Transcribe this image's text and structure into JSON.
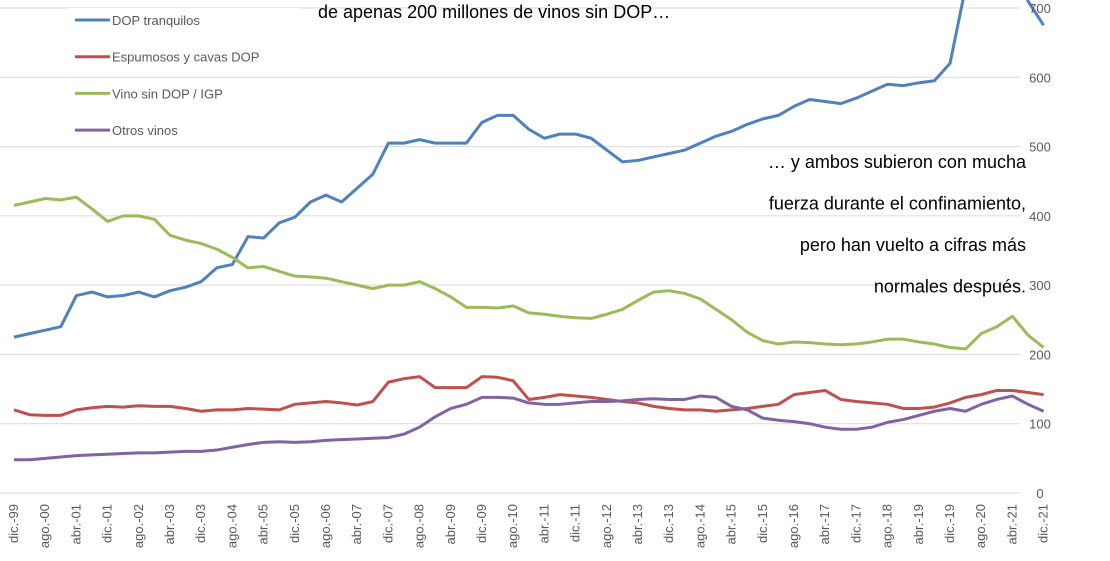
{
  "chart_data": {
    "type": "line",
    "title": "de apenas 200 millones de vinos sin DOP…",
    "annotation": [
      "… y ambos subieron con mucha",
      "fuerza durante el confinamiento,",
      "pero han vuelto a cifras más",
      "normales después."
    ],
    "categories": [
      "dic.-99",
      null,
      "ago.-00",
      null,
      "abr.-01",
      null,
      "dic.-01",
      null,
      "ago.-02",
      null,
      "abr.-03",
      null,
      "dic.-03",
      null,
      "ago.-04",
      null,
      "abr.-05",
      null,
      "dic.-05",
      null,
      "ago.-06",
      null,
      "abr.-07",
      null,
      "dic.-07",
      null,
      "ago.-08",
      null,
      "abr.-09",
      null,
      "dic.-09",
      null,
      "ago.-10",
      null,
      "abr.-11",
      null,
      "dic.-11",
      null,
      "ago.-12",
      null,
      "abr.-13",
      null,
      "dic.-13",
      null,
      "ago.-14",
      null,
      "abr.-15",
      null,
      "dic.-15",
      null,
      "ago.-16",
      null,
      "abr.-17",
      null,
      "dic.-17",
      null,
      "ago.-18",
      null,
      "abr.-19",
      null,
      "dic.-19",
      null,
      "ago.-20",
      null,
      "abr.-21",
      null,
      "dic.-21"
    ],
    "series": [
      {
        "name": "DOP tranquilos",
        "color": "#4f81bd",
        "values": [
          225,
          230,
          235,
          240,
          285,
          290,
          283,
          285,
          290,
          283,
          292,
          297,
          305,
          325,
          330,
          370,
          368,
          390,
          398,
          420,
          430,
          420,
          440,
          460,
          505,
          505,
          510,
          505,
          505,
          505,
          535,
          545,
          545,
          525,
          512,
          518,
          518,
          512,
          495,
          478,
          480,
          485,
          490,
          495,
          505,
          515,
          522,
          532,
          540,
          545,
          558,
          568,
          565,
          562,
          570,
          580,
          590,
          588,
          592,
          595,
          620,
          730,
          760,
          750,
          760,
          710,
          675
        ]
      },
      {
        "name": "Espumosos y cavas DOP",
        "color": "#c0504d",
        "values": [
          120,
          113,
          112,
          112,
          120,
          123,
          125,
          124,
          126,
          125,
          125,
          122,
          118,
          120,
          120,
          122,
          121,
          120,
          128,
          130,
          132,
          130,
          127,
          132,
          160,
          165,
          168,
          152,
          152,
          152,
          168,
          167,
          162,
          135,
          138,
          142,
          140,
          138,
          135,
          132,
          130,
          125,
          122,
          120,
          120,
          118,
          120,
          122,
          125,
          128,
          142,
          145,
          148,
          135,
          132,
          130,
          128,
          122,
          122,
          124,
          130,
          138,
          142,
          148,
          148,
          145,
          142
        ]
      },
      {
        "name": "Vino sin DOP / IGP",
        "color": "#9bbb59",
        "values": [
          415,
          420,
          425,
          423,
          427,
          410,
          392,
          400,
          400,
          395,
          372,
          365,
          360,
          352,
          340,
          325,
          327,
          320,
          313,
          312,
          310,
          305,
          300,
          295,
          300,
          300,
          305,
          295,
          283,
          268,
          268,
          267,
          270,
          260,
          258,
          255,
          253,
          252,
          258,
          265,
          278,
          290,
          292,
          288,
          280,
          265,
          250,
          232,
          220,
          215,
          218,
          217,
          215,
          214,
          215,
          218,
          222,
          222,
          218,
          215,
          210,
          208,
          230,
          240,
          255,
          228,
          210
        ]
      },
      {
        "name": "Otros vinos",
        "color": "#8064a2",
        "values": [
          48,
          48,
          50,
          52,
          54,
          55,
          56,
          57,
          58,
          58,
          59,
          60,
          60,
          62,
          66,
          70,
          73,
          74,
          73,
          74,
          76,
          77,
          78,
          79,
          80,
          85,
          95,
          110,
          122,
          128,
          138,
          138,
          137,
          130,
          128,
          128,
          130,
          132,
          132,
          133,
          135,
          136,
          135,
          135,
          140,
          138,
          125,
          120,
          108,
          105,
          103,
          100,
          95,
          92,
          92,
          95,
          102,
          106,
          112,
          118,
          122,
          118,
          128,
          135,
          140,
          128,
          118
        ]
      }
    ],
    "ylim": [
      0,
      712
    ],
    "yticks": [
      0,
      100,
      200,
      300,
      400,
      500,
      600,
      700
    ],
    "grid": true,
    "legend": "top-left"
  }
}
